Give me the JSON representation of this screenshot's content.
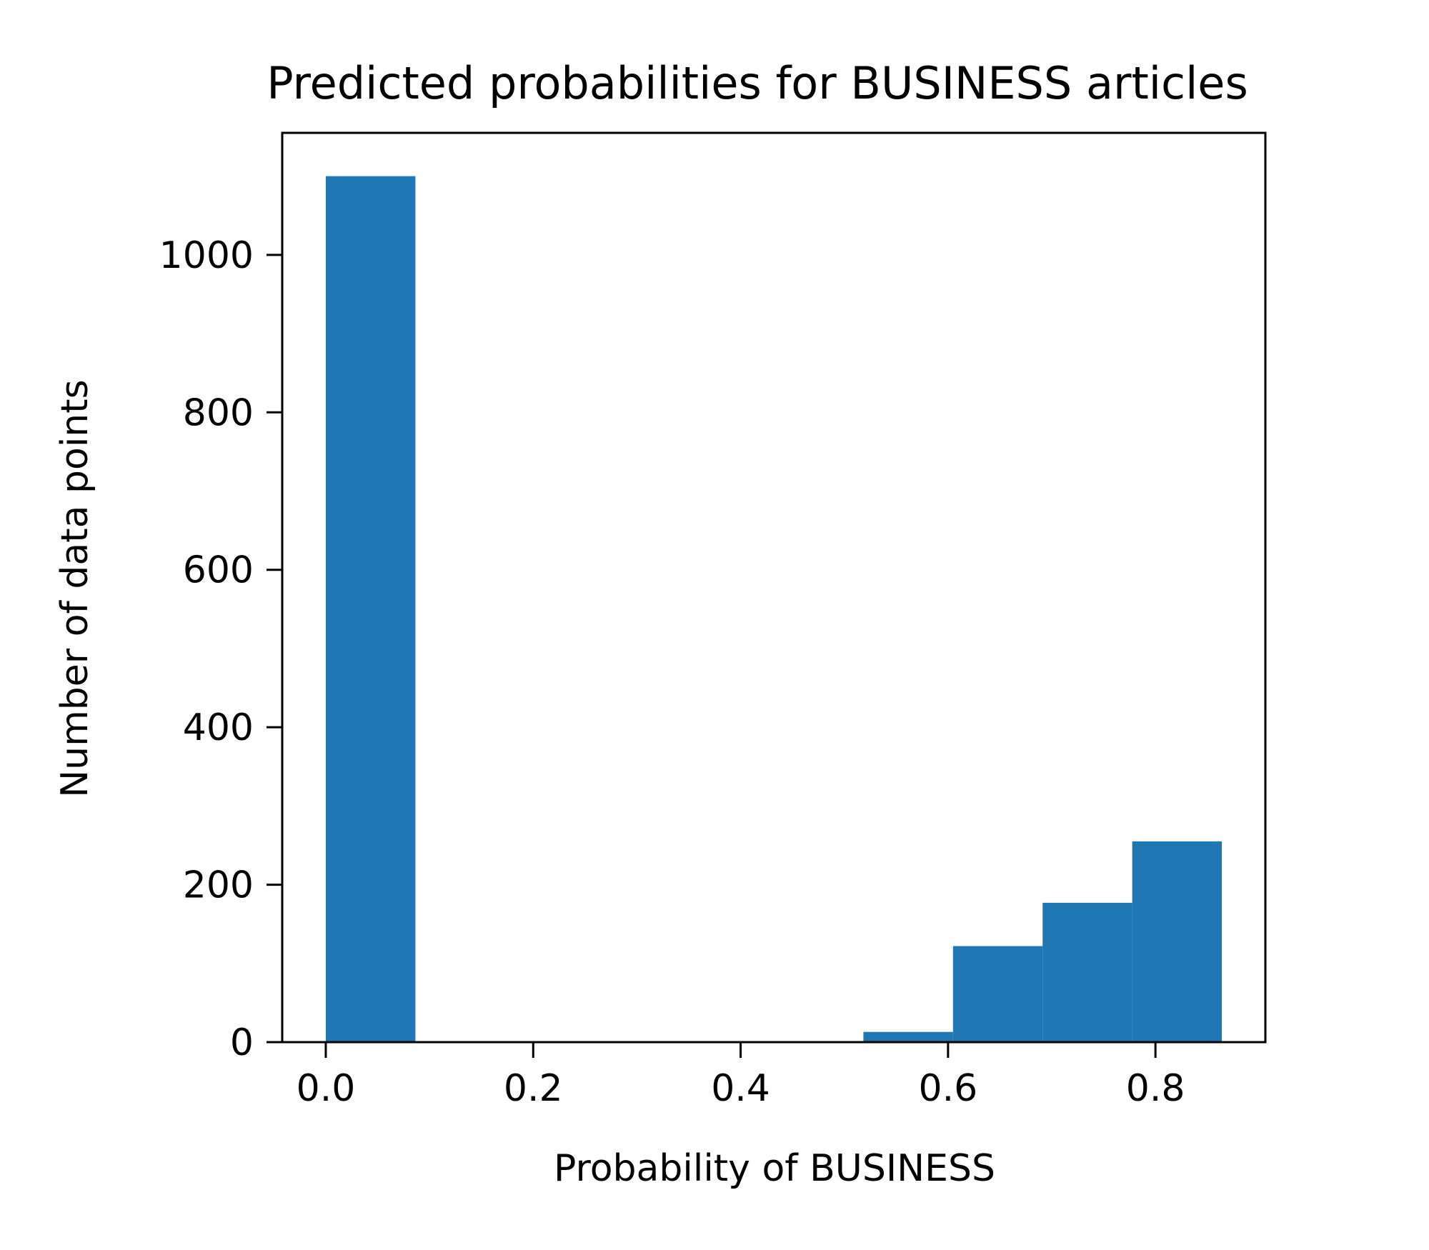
{
  "chart_data": {
    "type": "bar",
    "title": "Predicted probabilities for BUSINESS articles",
    "xlabel": "Probability of BUSINESS",
    "ylabel": "Number of data points",
    "bins": [
      {
        "x0": 0.0,
        "x1": 0.0864,
        "count": 1100
      },
      {
        "x0": 0.0864,
        "x1": 0.1728,
        "count": 0
      },
      {
        "x0": 0.1728,
        "x1": 0.2592,
        "count": 0
      },
      {
        "x0": 0.2592,
        "x1": 0.3456,
        "count": 0
      },
      {
        "x0": 0.3456,
        "x1": 0.432,
        "count": 0
      },
      {
        "x0": 0.432,
        "x1": 0.5184,
        "count": 0
      },
      {
        "x0": 0.5184,
        "x1": 0.6048,
        "count": 13
      },
      {
        "x0": 0.6048,
        "x1": 0.6912,
        "count": 122
      },
      {
        "x0": 0.6912,
        "x1": 0.7776,
        "count": 177
      },
      {
        "x0": 0.7776,
        "x1": 0.864,
        "count": 255
      }
    ],
    "xlim": [
      -0.042,
      0.906
    ],
    "ylim": [
      0,
      1155
    ],
    "xticks": [
      0.0,
      0.2,
      0.4,
      0.6,
      0.8
    ],
    "xtick_labels": [
      "0.0",
      "0.2",
      "0.4",
      "0.6",
      "0.8"
    ],
    "yticks": [
      0,
      200,
      400,
      600,
      800,
      1000
    ],
    "ytick_labels": [
      "0",
      "200",
      "400",
      "600",
      "800",
      "1000"
    ],
    "bar_color": "#1f77b4",
    "grid": false,
    "legend": "none"
  }
}
